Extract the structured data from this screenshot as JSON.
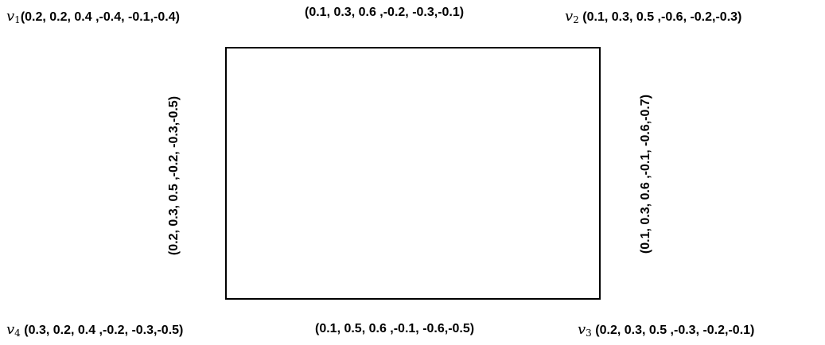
{
  "vertices": {
    "v1": {
      "symbol": "v",
      "sub": "1",
      "values": "(0.2, 0.2, 0.4 ,-0.4, -0.1,-0.4)"
    },
    "v2": {
      "symbol": "v",
      "sub": "2",
      "values": "(0.1, 0.3, 0.5 ,-0.6, -0.2,-0.3)"
    },
    "v3": {
      "symbol": "v",
      "sub": "3",
      "values": "(0.2, 0.3, 0.5 ,-0.3, -0.2,-0.1)"
    },
    "v4": {
      "symbol": "v",
      "sub": "4",
      "values": "(0.3, 0.2, 0.4 ,-0.2, -0.3,-0.5)"
    }
  },
  "edges": {
    "top": "(0.1, 0.3, 0.6 ,-0.2, -0.3,-0.1)",
    "right": "(0.1, 0.3, 0.6 ,-0.1, -0.6,-0.7)",
    "bottom": "(0.1, 0.5, 0.6 ,-0.1, -0.6,-0.5)",
    "left": "(0.2, 0.3, 0.5 ,-0.2, -0.3,-0.5)"
  }
}
